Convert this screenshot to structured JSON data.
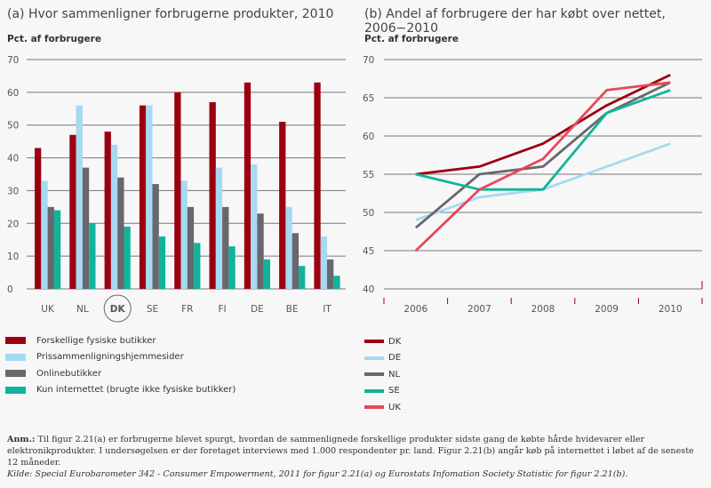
{
  "chart_data": [
    {
      "type": "bar",
      "title": "(a) Hvor sammenligner forbrugerne produkter, 2010",
      "ylabel": "Pct. af forbrugere",
      "xlabel": "",
      "ylim": [
        0,
        70
      ],
      "yticks": [
        0,
        10,
        20,
        30,
        40,
        50,
        60,
        70
      ],
      "grid": true,
      "highlighted_category": "DK",
      "categories": [
        "UK",
        "NL",
        "DK",
        "SE",
        "FR",
        "FI",
        "DE",
        "BE",
        "IT"
      ],
      "series": [
        {
          "name": "Forskellige fysiske butikker",
          "color": "#9b0010",
          "values": [
            43,
            47,
            48,
            56,
            60,
            57,
            63,
            51,
            63
          ]
        },
        {
          "name": "Prissammenligningshjemmesider",
          "color": "#a6d9f2",
          "values": [
            33,
            56,
            44,
            56,
            33,
            37,
            38,
            25,
            16
          ]
        },
        {
          "name": "Onlinebutikker",
          "color": "#67676d",
          "values": [
            25,
            37,
            34,
            32,
            25,
            25,
            23,
            17,
            9
          ]
        },
        {
          "name": "Kun internettet (brugte ikke fysiske butikker)",
          "color": "#11b49a",
          "values": [
            24,
            20,
            19,
            16,
            14,
            13,
            9,
            7,
            4
          ]
        }
      ],
      "legend_position": "bottom-left"
    },
    {
      "type": "line",
      "title": "(b) Andel af forbrugere der har købt over nettet, 2006−2010",
      "ylabel": "Pct. af forbrugere",
      "xlabel": "",
      "ylim": [
        40,
        70
      ],
      "yticks": [
        40,
        45,
        50,
        55,
        60,
        65,
        70
      ],
      "grid": true,
      "x": [
        "2006",
        "2007",
        "2008",
        "2009",
        "2010"
      ],
      "series": [
        {
          "name": "DK",
          "color": "#9b0010",
          "values": [
            55,
            56,
            59,
            64,
            68
          ]
        },
        {
          "name": "DE",
          "color": "#a6d9f2",
          "values": [
            49,
            52,
            53,
            56,
            59
          ]
        },
        {
          "name": "NL",
          "color": "#67676d",
          "values": [
            48,
            55,
            56,
            63,
            67
          ]
        },
        {
          "name": "SE",
          "color": "#11b49a",
          "values": [
            55,
            53,
            53,
            63,
            66
          ]
        },
        {
          "name": "UK",
          "color": "#e6485a",
          "values": [
            45,
            53,
            57,
            66,
            67
          ]
        }
      ],
      "legend_position": "bottom-left"
    }
  ],
  "notes": {
    "anm_label": "Anm.:",
    "anm_text": " Til figur 2.21(a) er forbrugerne blevet spurgt, hvordan de sammenlignede forskellige produkter sidste gang de købte hårde hvidevarer eller elektronikprodukter. I undersøgelsen er der foretaget interviews med 1.000 respondenter pr. land. Figur 2.21(b) angår køb på internettet i løbet af de seneste 12 måneder.",
    "source": "Kilde: Special Eurobarometer 342 - Consumer Empowerment, 2011 for figur 2.21(a) og Eurostats Infomation Society Statistic for figur 2.21(b)."
  }
}
